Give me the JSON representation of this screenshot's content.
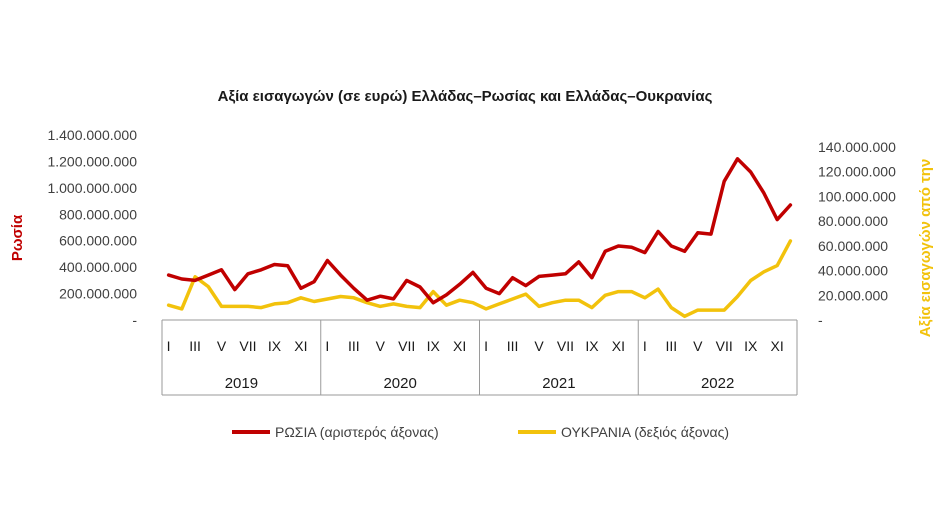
{
  "chart_data": {
    "type": "line",
    "title": "Αξία εισαγωγών (σε ευρώ) Ελλάδας–Ρωσίας και Ελλάδας–Ουκρανίας",
    "ylabel_left": "Ρωσία",
    "ylabel_right": "Αξία εισαγωγών από την",
    "left_ticks": [
      "-",
      "200.000.000",
      "400.000.000",
      "600.000.000",
      "800.000.000",
      "1.000.000.000",
      "1.200.000.000",
      "1.400.000.000"
    ],
    "right_ticks": [
      "-",
      "20.000.000",
      "40.000.000",
      "60.000.000",
      "80.000.000",
      "100.000.000",
      "120.000.000",
      "140.000.000"
    ],
    "ylim_left": [
      0,
      1400000000
    ],
    "ylim_right": [
      0,
      140000000
    ],
    "month_labels": [
      "I",
      "III",
      "V",
      "VII",
      "IX",
      "XI"
    ],
    "years": [
      "2019",
      "2020",
      "2021",
      "2022"
    ],
    "x": [
      "2019-01",
      "2019-02",
      "2019-03",
      "2019-04",
      "2019-05",
      "2019-06",
      "2019-07",
      "2019-08",
      "2019-09",
      "2019-10",
      "2019-11",
      "2019-12",
      "2020-01",
      "2020-02",
      "2020-03",
      "2020-04",
      "2020-05",
      "2020-06",
      "2020-07",
      "2020-08",
      "2020-09",
      "2020-10",
      "2020-11",
      "2020-12",
      "2021-01",
      "2021-02",
      "2021-03",
      "2021-04",
      "2021-05",
      "2021-06",
      "2021-07",
      "2021-08",
      "2021-09",
      "2021-10",
      "2021-11",
      "2021-12",
      "2022-01",
      "2022-02",
      "2022-03",
      "2022-04",
      "2022-05",
      "2022-06",
      "2022-07",
      "2022-08",
      "2022-09",
      "2022-10",
      "2022-11",
      "2022-12"
    ],
    "series": [
      {
        "name": "ΡΩΣΙΑ (αριστερός άξονας)",
        "axis": "left",
        "color": "#c00000",
        "values": [
          340000000,
          310000000,
          300000000,
          340000000,
          380000000,
          230000000,
          350000000,
          380000000,
          420000000,
          410000000,
          240000000,
          290000000,
          450000000,
          340000000,
          240000000,
          150000000,
          180000000,
          160000000,
          300000000,
          250000000,
          130000000,
          190000000,
          270000000,
          360000000,
          240000000,
          200000000,
          320000000,
          260000000,
          330000000,
          340000000,
          350000000,
          440000000,
          320000000,
          520000000,
          560000000,
          550000000,
          510000000,
          670000000,
          560000000,
          520000000,
          660000000,
          650000000,
          1050000000,
          1220000000,
          1120000000,
          960000000,
          760000000,
          870000000
        ]
      },
      {
        "name": "ΟΥΚΡΑΝΙΑ (δεξιός άξονας)",
        "axis": "right",
        "color": "#f2c20c",
        "values": [
          12000000,
          9000000,
          35000000,
          27000000,
          11000000,
          11000000,
          11000000,
          10000000,
          13000000,
          14000000,
          18000000,
          15000000,
          17000000,
          19000000,
          18000000,
          14000000,
          11000000,
          13000000,
          11000000,
          10000000,
          23000000,
          12000000,
          16000000,
          14000000,
          9000000,
          13000000,
          17000000,
          21000000,
          11000000,
          14000000,
          16000000,
          16000000,
          10000000,
          20000000,
          23000000,
          23000000,
          18000000,
          25000000,
          10000000,
          3000000,
          8000000,
          8000000,
          8000000,
          19000000,
          32000000,
          39000000,
          44000000,
          64000000
        ]
      }
    ],
    "grid": false,
    "legend": "bottom"
  }
}
